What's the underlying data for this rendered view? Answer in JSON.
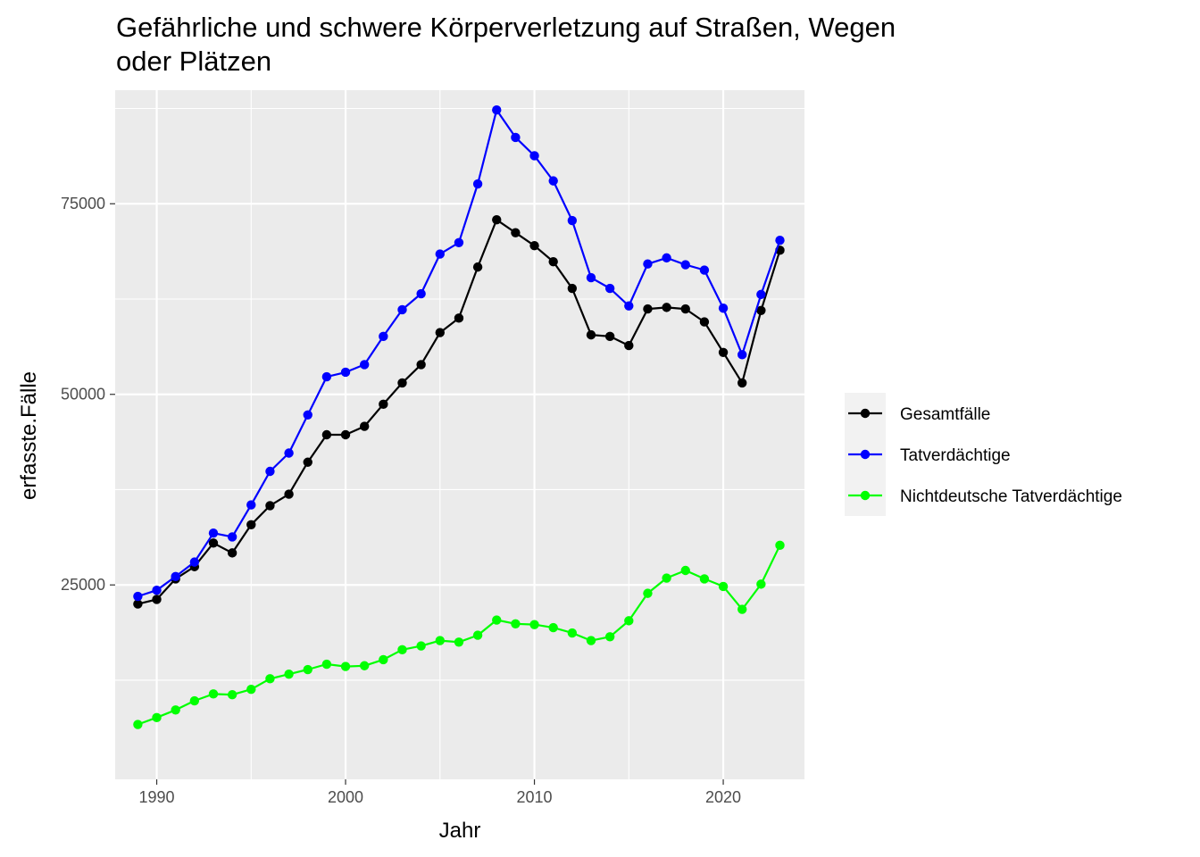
{
  "chart_data": {
    "type": "line",
    "title_lines": [
      "Gefährliche und schwere Körperverletzung auf Straßen, Wegen",
      "oder Plätzen"
    ],
    "xlabel": "Jahr",
    "ylabel": "erfasste.Fälle",
    "xlim": [
      1987.8,
      2024.3
    ],
    "ylim": [
      -500,
      89900
    ],
    "x_ticks": [
      1990,
      2000,
      2010,
      2020
    ],
    "x_tick_labels": [
      "1990",
      "2000",
      "2010",
      "2020"
    ],
    "x_minor_ticks": [
      1995,
      2005,
      2015
    ],
    "y_ticks": [
      25000,
      50000,
      75000
    ],
    "y_tick_labels": [
      "25000",
      "50000",
      "75000"
    ],
    "y_minor_ticks": [
      12500,
      37500,
      62500,
      87500
    ],
    "grid": true,
    "legend_position": "right",
    "x": [
      1989,
      1990,
      1991,
      1992,
      1993,
      1994,
      1995,
      1996,
      1997,
      1998,
      1999,
      2000,
      2001,
      2002,
      2003,
      2004,
      2005,
      2006,
      2007,
      2008,
      2009,
      2010,
      2011,
      2012,
      2013,
      2014,
      2015,
      2016,
      2017,
      2018,
      2019,
      2020,
      2021,
      2022,
      2023
    ],
    "series": [
      {
        "name": "Gesamtfälle",
        "color": "#000000",
        "values": [
          22500,
          23100,
          25800,
          27400,
          30500,
          29200,
          32900,
          35400,
          36900,
          41100,
          44700,
          44700,
          45800,
          48700,
          51500,
          53900,
          58100,
          60000,
          66700,
          72900,
          71200,
          69500,
          67400,
          63900,
          57800,
          57600,
          56400,
          61200,
          61400,
          61200,
          59500,
          55500,
          51500,
          61000,
          68900
        ]
      },
      {
        "name": "Tatverdächtige",
        "color": "#0000ff",
        "values": [
          23500,
          24300,
          26100,
          28000,
          31800,
          31300,
          35500,
          39900,
          42300,
          47300,
          52300,
          52900,
          53900,
          57600,
          61100,
          63200,
          68400,
          69900,
          77600,
          87300,
          83700,
          81300,
          78000,
          72800,
          65300,
          63900,
          61600,
          67100,
          67900,
          67000,
          66300,
          61300,
          55200,
          63100,
          70200
        ]
      },
      {
        "name": "Nichtdeutsche Tatverdächtige",
        "color": "#00ff00",
        "values": [
          6700,
          7600,
          8600,
          9800,
          10700,
          10600,
          11300,
          12700,
          13300,
          13900,
          14600,
          14300,
          14400,
          15200,
          16500,
          17000,
          17700,
          17500,
          18400,
          20400,
          19900,
          19800,
          19400,
          18700,
          17700,
          18200,
          20300,
          23900,
          25900,
          26900,
          25800,
          24800,
          21800,
          25100,
          30200
        ]
      }
    ]
  }
}
